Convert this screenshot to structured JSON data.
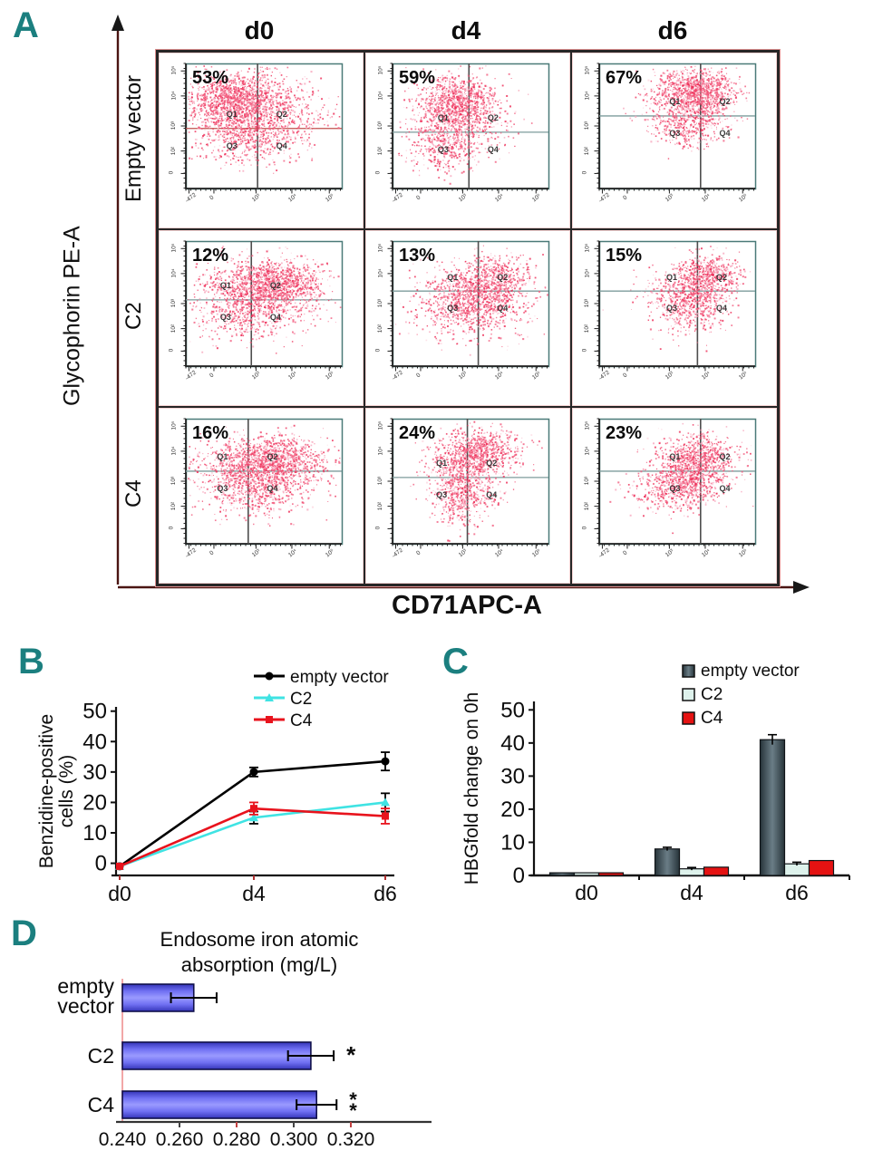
{
  "figure": {
    "panels": {
      "A": "A",
      "B": "B",
      "C": "C",
      "D": "D"
    },
    "accent_color": "#1b7f7f"
  },
  "chart_data": [
    {
      "id": "A",
      "type": "scatter",
      "xlabel": "CD71APC-A",
      "ylabel": "Glycophorin PE-A",
      "columns": [
        "d0",
        "d4",
        "d6"
      ],
      "rows": [
        "Empty vector",
        "C2",
        "C4"
      ],
      "quadrant_labels": [
        "Q1",
        "Q2",
        "Q3",
        "Q4"
      ],
      "x_tick_labels": [
        "-472",
        "0",
        "10³",
        "10⁴",
        "10⁵"
      ],
      "y_tick_labels": [
        "10⁵",
        "10⁴",
        "10³",
        "10²",
        "0"
      ],
      "dot_colors": [
        "#ee2a55",
        "#f25e7f",
        "#f8a6bd",
        "#fdd9e2"
      ],
      "plots": [
        {
          "row": "Empty vector",
          "col": "d0",
          "pct": "53%",
          "cross": [
            0.46,
            0.52
          ],
          "hline": "#c0504d",
          "blobs": [
            [
              0.3,
              0.28,
              0.13,
              0.1,
              900
            ],
            [
              0.43,
              0.38,
              0.22,
              0.15,
              1300
            ],
            [
              0.38,
              0.6,
              0.17,
              0.1,
              350
            ]
          ]
        },
        {
          "row": "Empty vector",
          "col": "d4",
          "pct": "59%",
          "cross": [
            0.49,
            0.55
          ],
          "blobs": [
            [
              0.4,
              0.3,
              0.12,
              0.1,
              650
            ],
            [
              0.42,
              0.45,
              0.15,
              0.17,
              800
            ],
            [
              0.3,
              0.66,
              0.1,
              0.11,
              280
            ]
          ]
        },
        {
          "row": "Empty vector",
          "col": "d6",
          "pct": "67%",
          "cross": [
            0.65,
            0.42
          ],
          "blobs": [
            [
              0.63,
              0.2,
              0.12,
              0.08,
              750
            ],
            [
              0.57,
              0.34,
              0.14,
              0.13,
              700
            ],
            [
              0.55,
              0.52,
              0.11,
              0.08,
              200
            ]
          ]
        },
        {
          "row": "C2",
          "col": "d0",
          "pct": "12%",
          "cross": [
            0.42,
            0.47
          ],
          "blobs": [
            [
              0.58,
              0.33,
              0.15,
              0.09,
              900
            ],
            [
              0.45,
              0.42,
              0.21,
              0.13,
              900
            ],
            [
              0.4,
              0.6,
              0.16,
              0.1,
              300
            ]
          ]
        },
        {
          "row": "C2",
          "col": "d4",
          "pct": "13%",
          "cross": [
            0.55,
            0.4
          ],
          "blobs": [
            [
              0.55,
              0.42,
              0.15,
              0.12,
              700
            ],
            [
              0.48,
              0.52,
              0.18,
              0.14,
              600
            ],
            [
              0.66,
              0.28,
              0.12,
              0.09,
              350
            ]
          ]
        },
        {
          "row": "C2",
          "col": "d6",
          "pct": "15%",
          "cross": [
            0.63,
            0.4
          ],
          "blobs": [
            [
              0.62,
              0.38,
              0.12,
              0.11,
              550,
              -0.6
            ],
            [
              0.55,
              0.5,
              0.14,
              0.13,
              450
            ],
            [
              0.72,
              0.25,
              0.1,
              0.08,
              300
            ]
          ]
        },
        {
          "row": "C4",
          "col": "d0",
          "pct": "16%",
          "cross": [
            0.4,
            0.42
          ],
          "blobs": [
            [
              0.55,
              0.33,
              0.16,
              0.09,
              950
            ],
            [
              0.45,
              0.42,
              0.22,
              0.14,
              950
            ],
            [
              0.42,
              0.6,
              0.17,
              0.1,
              330
            ]
          ]
        },
        {
          "row": "C4",
          "col": "d4",
          "pct": "24%",
          "cross": [
            0.48,
            0.47
          ],
          "blobs": [
            [
              0.55,
              0.26,
              0.13,
              0.08,
              700
            ],
            [
              0.47,
              0.42,
              0.12,
              0.14,
              650
            ],
            [
              0.43,
              0.64,
              0.08,
              0.13,
              320
            ]
          ]
        },
        {
          "row": "C4",
          "col": "d6",
          "pct": "23%",
          "cross": [
            0.65,
            0.42
          ],
          "blobs": [
            [
              0.56,
              0.47,
              0.13,
              0.1,
              650,
              -0.5
            ],
            [
              0.63,
              0.3,
              0.13,
              0.09,
              600
            ],
            [
              0.49,
              0.58,
              0.13,
              0.08,
              280
            ]
          ]
        }
      ]
    },
    {
      "id": "B",
      "type": "line",
      "categories": [
        "d0",
        "d4",
        "d6"
      ],
      "ylabel_lines": [
        "Benzidine-positive",
        "cells (%)"
      ],
      "yticks": [
        0,
        10,
        20,
        30,
        40,
        50
      ],
      "ylim": [
        -4,
        52
      ],
      "legend_position": "top-right",
      "series": [
        {
          "name": "empty vector",
          "color": "#000000",
          "marker": "circle",
          "values": [
            -1,
            30,
            33.5
          ],
          "errors": [
            0,
            1.5,
            3
          ]
        },
        {
          "name": "C2",
          "color": "#3fe3e3",
          "marker": "triangle",
          "values": [
            -1,
            15,
            20
          ],
          "errors": [
            0,
            2,
            3
          ]
        },
        {
          "name": "C4",
          "color": "#e8131d",
          "marker": "square",
          "values": [
            -1,
            18,
            15.5
          ],
          "errors": [
            0,
            2,
            2.5
          ]
        }
      ]
    },
    {
      "id": "C",
      "type": "bar",
      "categories": [
        "d0",
        "d4",
        "d6"
      ],
      "ylabel": "HBGfold change on 0h",
      "yticks": [
        0,
        10,
        20,
        30,
        40,
        50
      ],
      "ylim": [
        0,
        52
      ],
      "legend_position": "top-right",
      "series": [
        {
          "name": "empty vector",
          "color": "#41545c",
          "values": [
            0.8,
            8,
            41
          ],
          "errors": [
            0,
            0.5,
            1.5
          ]
        },
        {
          "name": "C2",
          "color": "#def2ec",
          "values": [
            0.8,
            2,
            3.5
          ],
          "errors": [
            0,
            0.4,
            0.5
          ]
        },
        {
          "name": "C4",
          "color": "#e51212",
          "values": [
            0.8,
            2.5,
            4.5
          ],
          "errors": [
            0,
            0,
            0
          ]
        }
      ]
    },
    {
      "id": "D",
      "type": "bar",
      "orientation": "horizontal",
      "title_lines": [
        "Endosome iron atomic",
        "absorption (mg/L)"
      ],
      "categories": [
        "empty vector",
        "C2",
        "C4"
      ],
      "category_lines": [
        [
          "empty",
          "vector"
        ],
        [
          "C2"
        ],
        [
          "C4"
        ]
      ],
      "values": [
        0.265,
        0.306,
        0.308
      ],
      "errors": [
        0.008,
        0.008,
        0.007
      ],
      "significance": [
        "",
        "*",
        "**"
      ],
      "xtick_labels": [
        "0.240",
        "0.260",
        "0.280",
        "0.300",
        "0.320"
      ],
      "xticks": [
        0.24,
        0.26,
        0.28,
        0.3,
        0.32
      ],
      "xlim": [
        0.24,
        0.345
      ],
      "bar_color": "#5b5bec"
    }
  ]
}
